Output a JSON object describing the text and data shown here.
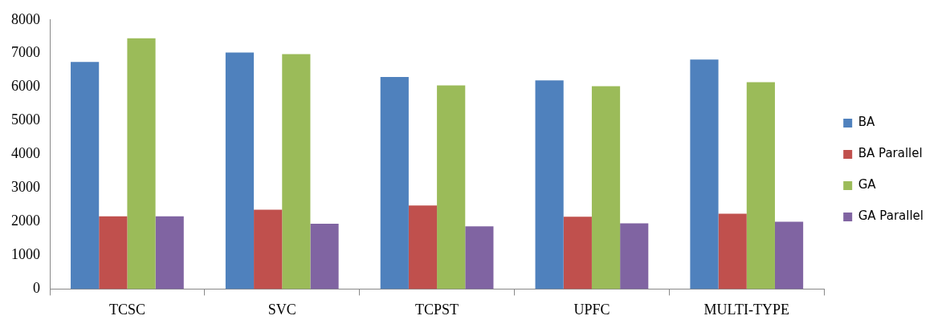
{
  "chart_data": {
    "type": "bar",
    "categories": [
      "TCSC",
      "SVC",
      "TCPST",
      "UPFC",
      "MULTI-TYPE"
    ],
    "series": [
      {
        "name": "BA",
        "color": "#4f81bd",
        "values": [
          6750,
          7030,
          6300,
          6200,
          6820
        ]
      },
      {
        "name": "BA Parallel",
        "color": "#c0504d",
        "values": [
          2160,
          2360,
          2480,
          2150,
          2240
        ]
      },
      {
        "name": "GA",
        "color": "#9bbb59",
        "values": [
          7450,
          6980,
          6050,
          6030,
          6150
        ]
      },
      {
        "name": "GA Parallel",
        "color": "#8064a2",
        "values": [
          2160,
          1940,
          1860,
          1950,
          2000
        ]
      }
    ],
    "ylim": [
      0,
      8000
    ],
    "yticks": [
      0,
      1000,
      2000,
      3000,
      4000,
      5000,
      6000,
      7000,
      8000
    ],
    "grid": false,
    "legend": "right"
  }
}
